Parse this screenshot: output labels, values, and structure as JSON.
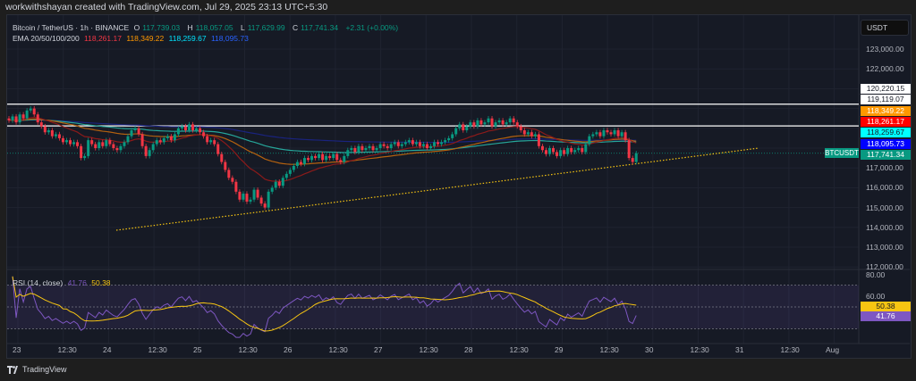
{
  "header": {
    "credit": "workwithshayan created with TradingView.com, Jul 29, 2025 23:13 UTC+5:30"
  },
  "symbol": {
    "title": "Bitcoin / TetherUS · 1h · BINANCE",
    "o_label": "O",
    "o": "117,739.03",
    "h_label": "H",
    "h": "118,057.05",
    "l_label": "L",
    "l": "117,629.99",
    "c_label": "C",
    "c": "117,741.34",
    "change": "+2.31 (+0.00%)"
  },
  "ema": {
    "label": "EMA 20/50/100/200",
    "values": [
      "118,261.17",
      "118,349.22",
      "118,259.67",
      "118,095.73"
    ],
    "colors": [
      "#f23645",
      "#ff9800",
      "#00e5ff",
      "#2962ff"
    ]
  },
  "rsi": {
    "label": "RSI (14, close)",
    "value": "41.76",
    "ma": "50.38",
    "value_color": "#7e57c2",
    "ma_color": "#f7c512",
    "axis_labels": [
      "80.00",
      "60.00"
    ]
  },
  "price_axis": {
    "currency": "USDT",
    "labels": [
      "123,000.00",
      "122,000.00",
      "117,000.00",
      "116,000.00",
      "115,000.00",
      "114,000.00",
      "113,000.00",
      "112,000.00"
    ]
  },
  "price_tags": [
    {
      "text": "120,220.15",
      "bg": "#ffffff",
      "fg": "#131722"
    },
    {
      "text": "119,119.07",
      "bg": "#ffffff",
      "fg": "#131722"
    },
    {
      "text": "118,349.22",
      "bg": "#ff9800",
      "fg": "#ffffff"
    },
    {
      "text": "118,261.17",
      "bg": "#ff0000",
      "fg": "#ffffff"
    },
    {
      "text": "118,259.67",
      "bg": "#00ffff",
      "fg": "#131722"
    },
    {
      "text": "118,095.73",
      "bg": "#0000ff",
      "fg": "#ffffff"
    },
    {
      "text": "117,741.34",
      "bg": "#089981",
      "fg": "#ffffff"
    }
  ],
  "symbol_tag": "BTCUSDT",
  "time_axis": [
    "23",
    "12:30",
    "24",
    "12:30",
    "25",
    "12:30",
    "26",
    "12:30",
    "27",
    "12:30",
    "28",
    "12:30",
    "29",
    "12:30",
    "30",
    "12:30",
    "31",
    "12:30",
    "Aug"
  ],
  "footer": {
    "brand": "TradingView"
  },
  "chart_data": {
    "type": "candlestick",
    "interval": "1h",
    "ylim": [
      112000,
      123000
    ],
    "colors": {
      "up": "#089981",
      "down": "#f23645",
      "trendline": "#f7c512"
    },
    "horizontal_lines": [
      120220.15,
      119119.07
    ],
    "trendline": {
      "start": 113856,
      "end": 118000
    },
    "current_price": 117741.34,
    "closes": [
      119400,
      119600,
      119300,
      119700,
      119500,
      119900,
      120000,
      119700,
      119300,
      119100,
      118800,
      118900,
      118600,
      118700,
      118500,
      118300,
      118400,
      118200,
      118300,
      118100,
      117500,
      117600,
      118400,
      118200,
      118000,
      118300,
      118100,
      118400,
      118200,
      118000,
      117900,
      118100,
      118300,
      118600,
      118900,
      119000,
      118700,
      118100,
      117600,
      117900,
      118200,
      118400,
      118300,
      118500,
      118600,
      118400,
      118700,
      119000,
      119100,
      118900,
      119200,
      118900,
      119000,
      118800,
      118600,
      118300,
      118400,
      118200,
      117700,
      117300,
      116900,
      116500,
      116300,
      115800,
      115400,
      115700,
      115300,
      115400,
      115900,
      115500,
      115200,
      115000,
      115800,
      116000,
      116300,
      116100,
      116500,
      116700,
      116900,
      117100,
      117300,
      117200,
      117500,
      117400,
      117600,
      117500,
      117700,
      117400,
      117600,
      117500,
      117700,
      117400,
      117300,
      117600,
      117900,
      118000,
      117800,
      118100,
      117900,
      118000,
      118100,
      117900,
      118000,
      118200,
      118100,
      118000,
      118200,
      118300,
      118100,
      118200,
      118300,
      118400,
      118200,
      118300,
      118100,
      118200,
      118000,
      118100,
      118300,
      118200,
      118300,
      118400,
      118500,
      118700,
      119000,
      119200,
      118900,
      119100,
      119300,
      119100,
      119400,
      119200,
      119300,
      119500,
      119100,
      119300,
      119400,
      119200,
      119300,
      119500,
      119300,
      119100,
      118900,
      118700,
      118800,
      118600,
      118700,
      118100,
      117900,
      117700,
      118000,
      117800,
      117600,
      117900,
      117700,
      118000,
      117800,
      117900,
      118000,
      117800,
      118200,
      118600,
      118700,
      118800,
      118600,
      118900,
      118800,
      118700,
      118900,
      118600,
      118800,
      118400,
      117500,
      117300,
      117741.34
    ]
  }
}
